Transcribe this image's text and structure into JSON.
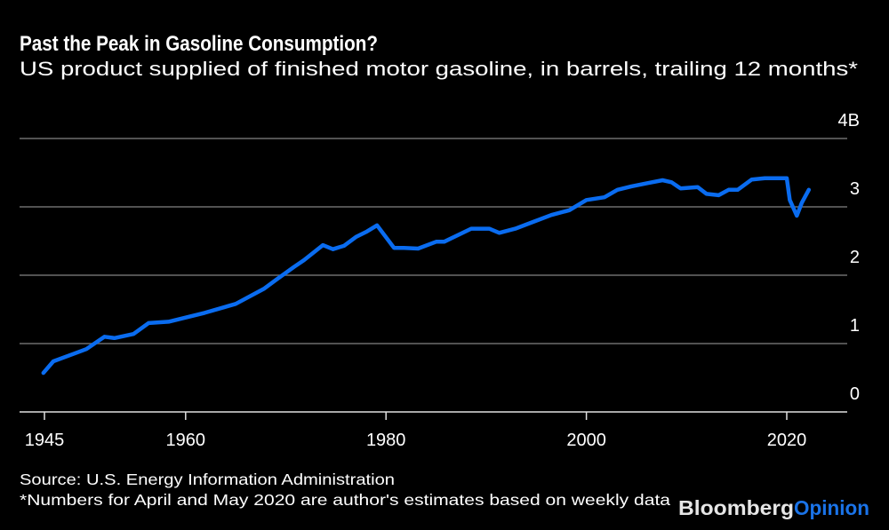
{
  "header": {
    "title": "Past the Peak in Gasoline Consumption?",
    "subtitle": "US product supplied of finished motor gasoline, in barrels, trailing 12 months*"
  },
  "footer": {
    "source": "Source: U.S. Energy Information Administration",
    "note": "*Numbers for April and May 2020 are author's estimates based on weekly data"
  },
  "logo": {
    "part1": "Bloomberg",
    "part2": "Opinion",
    "part1_color": "#e6e6e6",
    "part2_color": "#1a73e8"
  },
  "colors": {
    "background": "#000000",
    "line": "#0a6cf0",
    "grid": "#6e6e6e",
    "axis": "#e0e0e0"
  },
  "chart_data": {
    "type": "line",
    "title": "Past the Peak in Gasoline Consumption?",
    "subtitle": "US product supplied of finished motor gasoline, in barrels, trailing 12 months*",
    "xlim": [
      1944,
      2025
    ],
    "ylim": [
      0,
      4
    ],
    "grid": true,
    "y_axis_side": "right",
    "x_ticks": [
      {
        "value": 1945,
        "label": "1945"
      },
      {
        "value": 1960,
        "label": "1960"
      },
      {
        "value": 1980,
        "label": "1980"
      },
      {
        "value": 2000,
        "label": "2000"
      },
      {
        "value": 2020,
        "label": "2020"
      }
    ],
    "y_ticks": [
      {
        "value": 4,
        "label": "4B"
      },
      {
        "value": 3,
        "label": "3"
      },
      {
        "value": 2,
        "label": "2"
      },
      {
        "value": 1,
        "label": "1"
      },
      {
        "value": 0,
        "label": "0"
      }
    ],
    "series": [
      {
        "x": [
          1945.8,
          1946.8,
          1949.0,
          1950.1,
          1951.9,
          1952.9,
          1954.8,
          1956.3,
          1958.3,
          1961.9,
          1965.0,
          1967.8,
          1969.0,
          1970.8,
          1971.8,
          1973.7,
          1974.7,
          1975.8,
          1977.0,
          1978.1,
          1979.1,
          1980.8,
          1981.8,
          1983.2,
          1985.0,
          1985.8,
          1988.5,
          1990.3,
          1991.3,
          1992.9,
          1994.7,
          1996.5,
          1998.3,
          2000.0,
          2001.8,
          2003.1,
          2004.5,
          2006.2,
          2007.6,
          2008.5,
          2009.4,
          2011.1,
          2012.0,
          2013.2,
          2014.2,
          2015.1,
          2016.5,
          2017.8,
          2020.0,
          2020.3,
          2021.0,
          2021.5,
          2022.2
        ],
        "y": [
          0.57,
          0.74,
          0.86,
          0.92,
          1.1,
          1.08,
          1.14,
          1.3,
          1.32,
          1.45,
          1.58,
          1.8,
          1.93,
          2.12,
          2.22,
          2.44,
          2.38,
          2.43,
          2.56,
          2.64,
          2.73,
          2.4,
          2.4,
          2.39,
          2.49,
          2.49,
          2.68,
          2.68,
          2.62,
          2.68,
          2.78,
          2.88,
          2.95,
          3.1,
          3.14,
          3.25,
          3.3,
          3.35,
          3.39,
          3.36,
          3.27,
          3.29,
          3.19,
          3.17,
          3.25,
          3.25,
          3.4,
          3.42,
          3.42,
          3.1,
          2.87,
          3.06,
          3.25
        ]
      }
    ]
  }
}
